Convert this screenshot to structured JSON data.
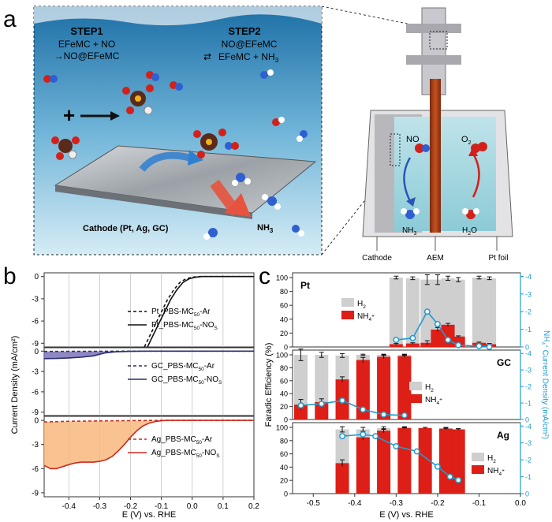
{
  "panels": {
    "a": {
      "label": "a",
      "step1_title": "STEP1",
      "step1_line1": "EFeMC + NO",
      "step1_line2": "→NO@EFeMC",
      "step2_title": "STEP2",
      "step2_line1": "NO@EFeMC",
      "step2_line2": "EFeMC + NH",
      "step2_sub": "3",
      "cathode_caption": "Cathode (Pt, Ag, GC)",
      "nh3_main": "NH",
      "nh3_sub": "3",
      "cell_no": "NO",
      "cell_o2": "O",
      "cell_o2_sub": "2",
      "cell_nh3": "NH",
      "cell_nh3_sub": "3",
      "cell_h2o": "H",
      "cell_h2o_sub": "2",
      "cell_h2o_tail": "O",
      "cell_cathode": "Cathode",
      "cell_aem": "AEM",
      "cell_ptfoil": "Pt foil"
    },
    "b": {
      "label": "b"
    },
    "c": {
      "label": "c"
    }
  },
  "colors": {
    "red": "#dd1f17",
    "gray": "#cfcfcf",
    "cyan": "#1f9bcf",
    "navy": "#2a2d6e",
    "purple_fill": "#7b73b8",
    "orange_fill": "#f7b97c",
    "ag_red": "#cc2a1e",
    "water_top": "#1d6fa6",
    "water_bottom": "#cfe9f4"
  },
  "chart_data": [
    {
      "id": "b",
      "type": "line",
      "xlabel": "E (V) vs. RHE",
      "ylabel": "Current Density (mA/cm²)",
      "xlim": [
        -0.48,
        0.2
      ],
      "xticks": [
        -0.4,
        -0.3,
        -0.2,
        -0.1,
        0.0,
        0.1,
        0.2
      ],
      "xtick_labels": [
        "-0.4",
        "-0.3",
        "-0.2",
        "-0.1",
        "0.0",
        "0.1",
        "0.2"
      ],
      "subplots": [
        {
          "name": "Pt",
          "ylim": [
            -9.5,
            0.5
          ],
          "yticks": [
            0,
            -3,
            -6,
            -9
          ],
          "ytick_labels": [
            "0",
            "-3",
            "-6",
            "-9"
          ],
          "series": [
            {
              "name": "Pt_PBS-MC50-Ar",
              "label_main": "Pt_PBS-MC",
              "label_sub": "50",
              "label_tail": "-Ar",
              "style": "dashed",
              "color": "#111111",
              "x": [
                -0.155,
                -0.14,
                -0.12,
                -0.1,
                -0.08,
                -0.06,
                -0.04,
                -0.02,
                0.0,
                0.02,
                0.05,
                0.1,
                0.2
              ],
              "y": [
                -9.5,
                -8.2,
                -6.5,
                -4.8,
                -3.1,
                -1.8,
                -0.8,
                -0.3,
                -0.1,
                0.0,
                0.0,
                0.0,
                0.0
              ]
            },
            {
              "name": "Pt_PBS-MC50-NOS",
              "label_main": "Pt_PBS-MC",
              "label_sub": "50",
              "label_tail": "-NO",
              "label_sub2": "S",
              "style": "solid",
              "color": "#111111",
              "x": [
                -0.145,
                -0.13,
                -0.11,
                -0.09,
                -0.07,
                -0.05,
                -0.03,
                -0.01,
                0.01,
                0.03,
                0.06,
                0.1,
                0.2
              ],
              "y": [
                -9.5,
                -8.2,
                -6.5,
                -4.8,
                -3.1,
                -1.8,
                -0.8,
                -0.3,
                -0.1,
                0.0,
                0.0,
                0.0,
                0.0
              ]
            }
          ]
        },
        {
          "name": "GC",
          "ylim": [
            -9.5,
            0.5
          ],
          "yticks": [
            0,
            -3,
            -6,
            -9
          ],
          "ytick_labels": [
            "0",
            "-3",
            "-6",
            "-9"
          ],
          "fill_color": "#7b73b8",
          "series": [
            {
              "name": "GC_PBS-MC50-Ar",
              "label_main": "GC_PBS-MC",
              "label_sub": "50",
              "label_tail": "-Ar",
              "style": "dashed",
              "color": "#2a2d6e",
              "x": [
                -0.48,
                -0.3,
                -0.2,
                0.0,
                0.2
              ],
              "y": [
                -0.05,
                -0.02,
                0.0,
                0.0,
                0.0
              ]
            },
            {
              "name": "GC_PBS-MC50-NOS",
              "label_main": "GC_PBS-MC",
              "label_sub": "50",
              "label_tail": "-NO",
              "label_sub2": "S",
              "style": "solid",
              "color": "#2a2d6e",
              "x": [
                -0.48,
                -0.44,
                -0.4,
                -0.36,
                -0.32,
                -0.3,
                -0.28,
                -0.25,
                -0.2,
                -0.15,
                -0.1,
                0.0,
                0.2
              ],
              "y": [
                -1.1,
                -1.08,
                -1.0,
                -0.9,
                -0.7,
                -0.45,
                -0.25,
                -0.1,
                -0.03,
                0.0,
                0.0,
                0.0,
                0.0
              ]
            }
          ]
        },
        {
          "name": "Ag",
          "ylim": [
            -9.5,
            0.5
          ],
          "yticks": [
            0,
            -3,
            -6,
            -9
          ],
          "ytick_labels": [
            "0",
            "-3",
            "-6",
            "-9"
          ],
          "fill_color": "#f7b97c",
          "series": [
            {
              "name": "Ag_PBS-MC50-Ar",
              "label_main": "Ag_PBS-MC",
              "label_sub": "50",
              "label_tail": "-Ar",
              "style": "dashed",
              "color": "#cc2a1e",
              "x": [
                -0.48,
                -0.4,
                -0.3,
                -0.2,
                -0.1,
                0.0,
                0.2
              ],
              "y": [
                -0.2,
                -0.12,
                -0.07,
                -0.03,
                0.0,
                0.0,
                0.0
              ]
            },
            {
              "name": "Ag_PBS-MC50-NOS",
              "label_main": "Ag_PBS-MC",
              "label_sub": "50",
              "label_tail": "-NO",
              "label_sub2": "S",
              "style": "solid",
              "color": "#cc2a1e",
              "x": [
                -0.48,
                -0.46,
                -0.44,
                -0.42,
                -0.4,
                -0.38,
                -0.36,
                -0.34,
                -0.32,
                -0.3,
                -0.28,
                -0.26,
                -0.24,
                -0.22,
                -0.2,
                -0.18,
                -0.16,
                -0.14,
                -0.12,
                -0.1,
                -0.08,
                -0.05,
                0.0,
                0.2
              ],
              "y": [
                -5.6,
                -6.0,
                -6.0,
                -5.75,
                -5.5,
                -5.3,
                -5.2,
                -5.2,
                -5.2,
                -5.1,
                -4.9,
                -4.5,
                -3.8,
                -3.0,
                -2.1,
                -1.3,
                -0.7,
                -0.35,
                -0.15,
                -0.05,
                0.0,
                0.0,
                0.0,
                0.0
              ]
            }
          ]
        }
      ]
    },
    {
      "id": "c",
      "type": "bar",
      "xlabel": "E (V) vs. RHE",
      "ylabel": "Faradic Efficiency (%)",
      "y2label_main": "NH",
      "y2label_sub": "4",
      "y2label_sup": "+",
      "y2label_tail": " Current Density (mA/cm²)",
      "xlim": [
        -0.55,
        0.0
      ],
      "xticks": [
        -0.5,
        -0.4,
        -0.3,
        -0.2,
        -0.1,
        0.0
      ],
      "xtick_labels": [
        "-0.5",
        "-0.4",
        "-0.3",
        "-0.2",
        "-0.1",
        "0.0"
      ],
      "ylim": [
        0,
        100
      ],
      "yticks": [
        0,
        20,
        40,
        60,
        80,
        100
      ],
      "ytick_labels": [
        "0",
        "20",
        "40",
        "60",
        "80",
        "100"
      ],
      "y2lim": [
        0,
        4.2
      ],
      "y2ticks": [
        0,
        1,
        2,
        3,
        4
      ],
      "y2tick_labels": [
        "0",
        "-1",
        "-2",
        "-3",
        "-4"
      ],
      "legend_h2_main": "H",
      "legend_h2_sub": "2",
      "legend_nh4_main": "NH",
      "legend_nh4_sub": "4",
      "legend_nh4_sup": "+",
      "subplots": [
        {
          "name": "Pt",
          "x": [
            -0.3,
            -0.275,
            -0.25,
            -0.225,
            -0.2,
            -0.175,
            -0.15,
            -0.125,
            -0.1,
            -0.075,
            -0.05
          ],
          "h2": [
            100,
            100,
            100,
            98,
            100,
            97,
            100,
            97,
            99,
            100,
            99
          ],
          "nh4": [
            4,
            5,
            6,
            25,
            32,
            15,
            6,
            4
          ],
          "nh4_x": [
            -0.3,
            -0.26,
            -0.225,
            -0.2,
            -0.175,
            -0.15,
            -0.1,
            -0.075
          ],
          "h2_x": [
            -0.3,
            -0.26,
            -0.225,
            -0.2,
            -0.175,
            -0.15,
            -0.1,
            -0.075
          ],
          "h2_vals": [
            100,
            99,
            97,
            97,
            99,
            97,
            100,
            99
          ],
          "h2_err": [
            2,
            2,
            7,
            7,
            3,
            3,
            2,
            2
          ],
          "nh4_err": [
            1,
            1,
            3,
            3,
            2,
            1,
            1,
            1
          ],
          "current_x": [
            -0.3,
            -0.26,
            -0.225,
            -0.2,
            -0.175,
            -0.15,
            -0.1,
            -0.075
          ],
          "current": [
            0.4,
            0.5,
            2.0,
            1.3,
            0.4,
            0.1,
            0.05,
            0.0
          ]
        },
        {
          "name": "GC",
          "nh4_x": [
            -0.53,
            -0.48,
            -0.43,
            -0.38,
            -0.33,
            -0.28
          ],
          "h2_x": [
            -0.53,
            -0.48,
            -0.43,
            -0.38,
            -0.33,
            -0.28
          ],
          "h2_vals": [
            100,
            100,
            99,
            100,
            100,
            100
          ],
          "nh4": [
            23,
            27,
            62,
            92,
            97,
            98
          ],
          "h2_err": [
            9,
            4,
            3,
            1,
            1,
            1
          ],
          "nh4_err": [
            8,
            5,
            4,
            4,
            3,
            2
          ],
          "current_x": [
            -0.53,
            -0.48,
            -0.43,
            -0.38,
            -0.33,
            -0.28
          ],
          "current": [
            0.85,
            0.95,
            1.15,
            0.6,
            0.3,
            0.25
          ]
        },
        {
          "name": "Ag",
          "nh4_x": [
            -0.43,
            -0.38,
            -0.33,
            -0.28,
            -0.23,
            -0.18,
            -0.15
          ],
          "h2_x": [
            -0.43,
            -0.38,
            -0.33,
            -0.28,
            -0.23,
            -0.18,
            -0.15
          ],
          "h2_vals": [
            97,
            97,
            99,
            100,
            99,
            99,
            97
          ],
          "nh4": [
            46,
            85,
            95,
            99,
            99,
            98,
            97
          ],
          "h2_err": [
            4,
            3,
            2,
            1,
            1,
            1,
            1
          ],
          "nh4_err": [
            5,
            4,
            3,
            1,
            1,
            1,
            1
          ],
          "current_x": [
            -0.43,
            -0.38,
            -0.35,
            -0.3,
            -0.25,
            -0.2,
            -0.17,
            -0.15
          ],
          "current": [
            3.4,
            3.5,
            3.4,
            2.8,
            2.5,
            1.6,
            1.0,
            0.8
          ]
        }
      ]
    }
  ]
}
